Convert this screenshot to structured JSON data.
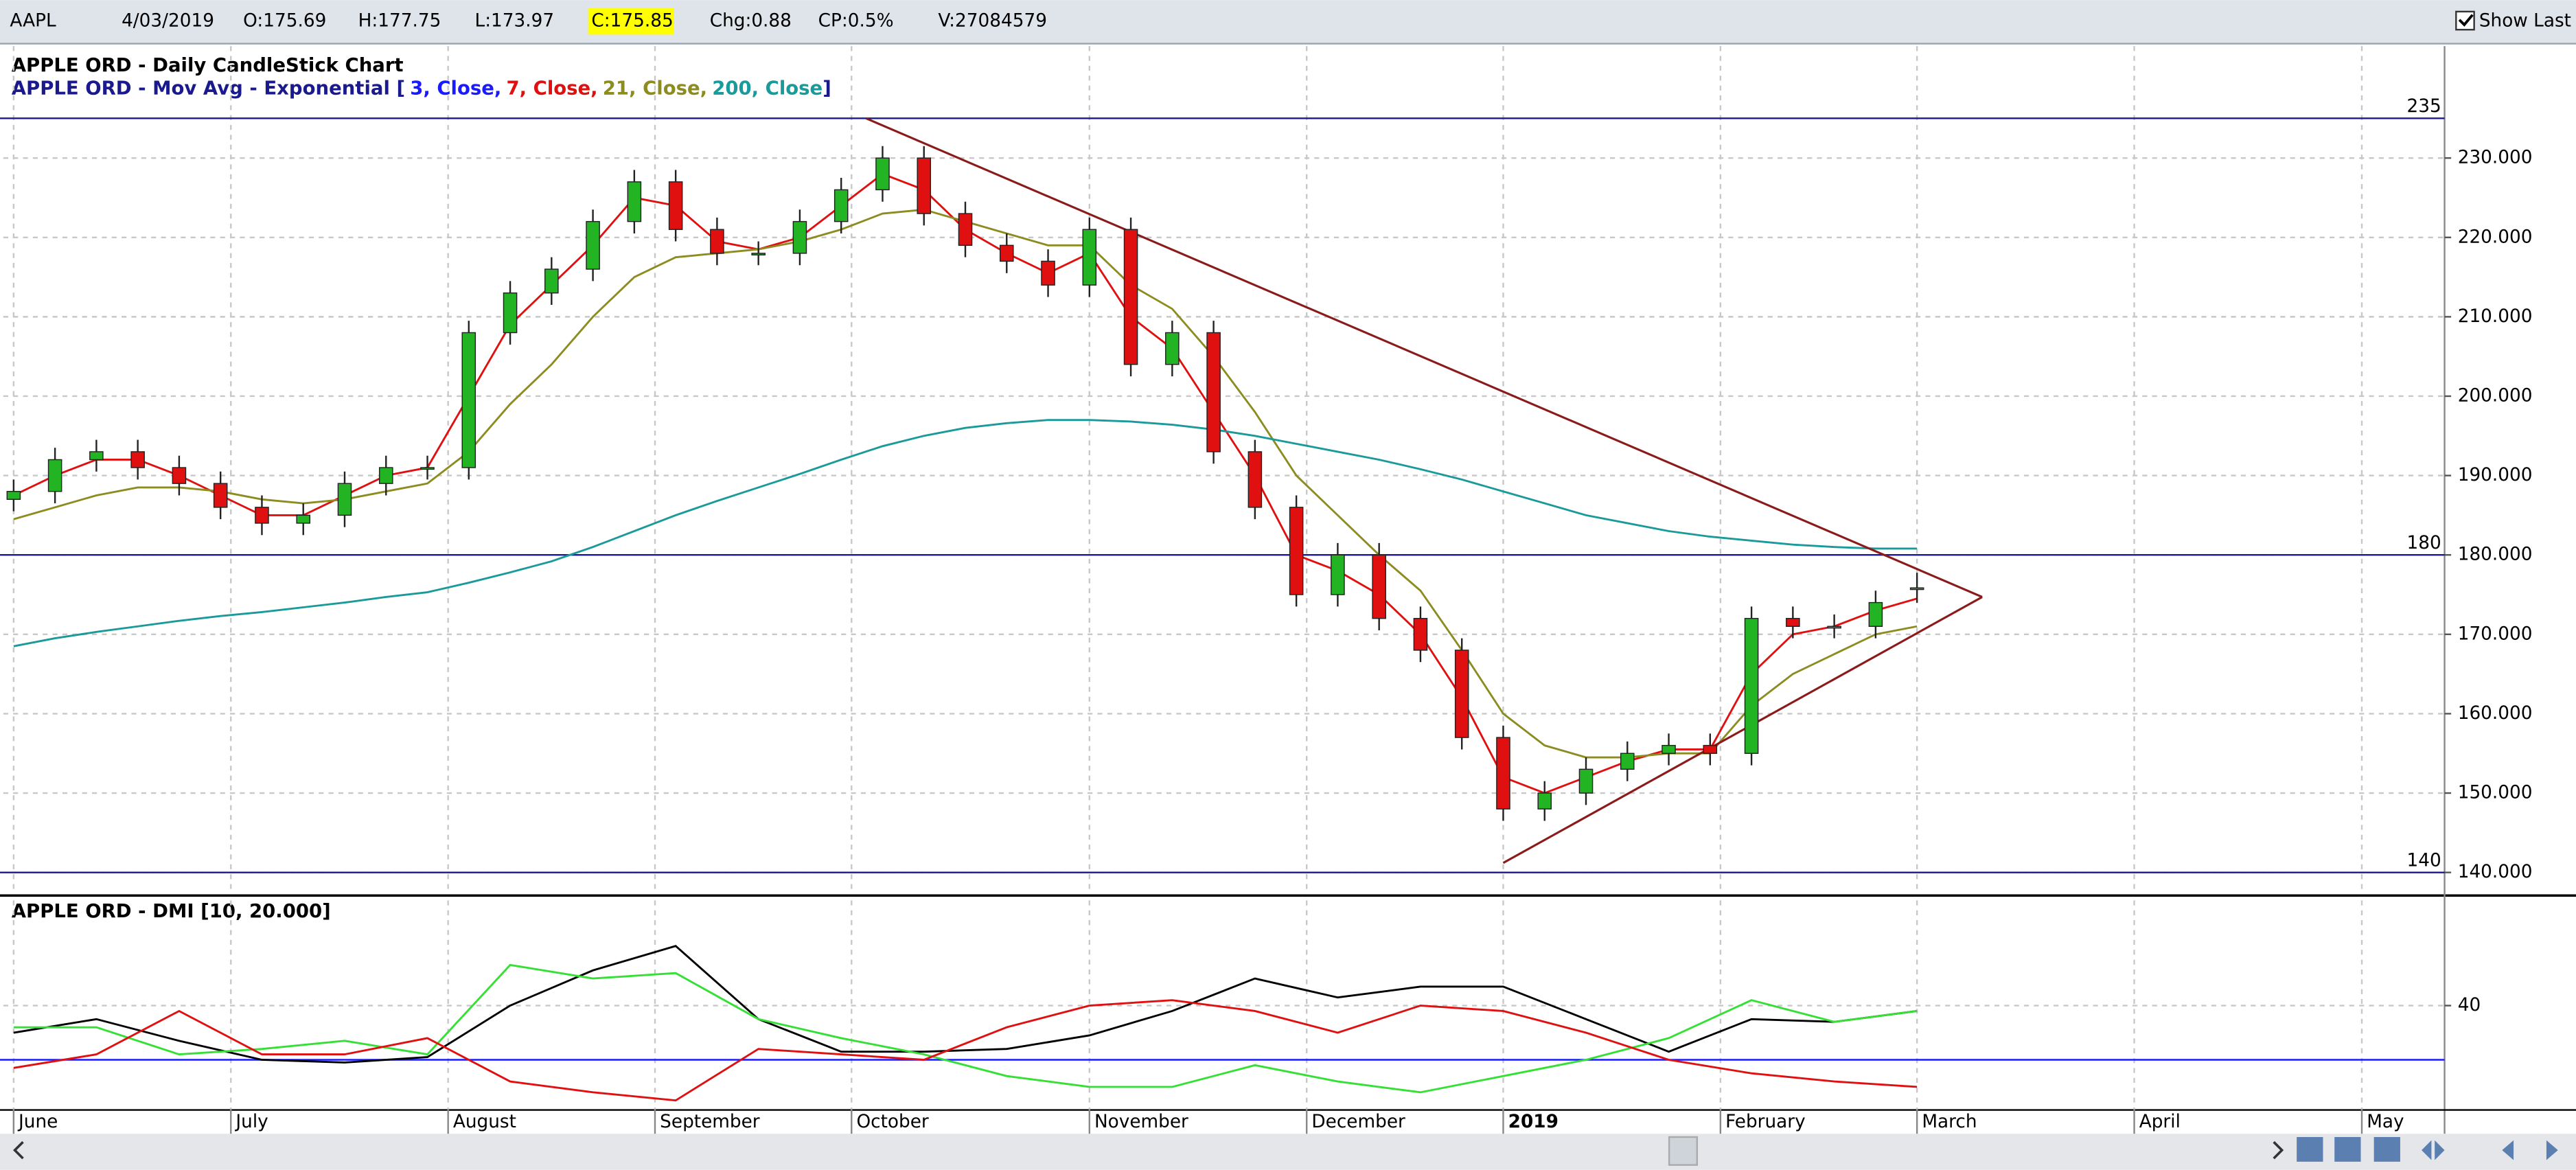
{
  "header": {
    "symbol": "AAPL",
    "date": "4/03/2019",
    "open": "O:175.69",
    "high": "H:177.75",
    "low": "L:173.97",
    "close": "C:175.85",
    "change": "Chg:0.88",
    "change_pct": "CP:0.5%",
    "volume": "V:27084579",
    "show_last": "Show Last"
  },
  "chart_data": [
    {
      "type": "candlestick",
      "title": "APPLE ORD - Daily CandleStick Chart",
      "legend_parts": [
        {
          "text": "APPLE ORD - Mov Avg - Exponential [",
          "color": "#1a1a8c"
        },
        {
          "text": "3, Close,",
          "color": "#1a1aff"
        },
        {
          "text": "7, Close,",
          "color": "#e01010"
        },
        {
          "text": "21, Close,",
          "color": "#8c8c20"
        },
        {
          "text": "200, Close",
          "color": "#1a9a9a"
        },
        {
          "text": "]",
          "color": "#1a1a8c"
        }
      ],
      "x": [
        0,
        4,
        8,
        12,
        16,
        20,
        24,
        28,
        32,
        36,
        40,
        44,
        48,
        52,
        56,
        60,
        64,
        68,
        72,
        76,
        80,
        84,
        88,
        92,
        96,
        100,
        104,
        108,
        112,
        116,
        120,
        124,
        128,
        132,
        136,
        140,
        144,
        148,
        152,
        156,
        160,
        164,
        168,
        172,
        176,
        180,
        184
      ],
      "open": [
        187,
        188,
        192,
        193,
        191,
        189,
        186,
        184,
        185,
        189,
        191,
        191,
        208,
        213,
        216,
        222,
        227,
        221,
        218,
        218,
        222,
        226,
        230,
        223,
        219,
        217,
        214,
        221,
        204,
        208,
        193,
        186,
        175,
        180,
        172,
        168,
        157,
        148,
        150,
        153,
        155,
        156,
        155,
        172,
        171,
        171,
        175.69
      ],
      "high": [
        189.5,
        193.5,
        194.5,
        194.5,
        192.5,
        190.5,
        187.5,
        186.5,
        190.5,
        192.5,
        192.5,
        209.5,
        214.5,
        217.5,
        223.5,
        228.5,
        228.5,
        222.5,
        219.5,
        223.5,
        227.5,
        231.5,
        231.5,
        224.5,
        220.5,
        218.5,
        222.5,
        222.5,
        209.5,
        209.5,
        194.5,
        187.5,
        181.5,
        181.5,
        173.5,
        169.5,
        158.5,
        151.5,
        154.5,
        156.5,
        157.5,
        157.5,
        173.5,
        173.5,
        172.5,
        175.5,
        177.75
      ],
      "low": [
        185.5,
        186.5,
        190.5,
        189.5,
        187.5,
        184.5,
        182.5,
        182.5,
        183.5,
        187.5,
        189.5,
        189.5,
        206.5,
        211.5,
        214.5,
        220.5,
        219.5,
        216.5,
        216.5,
        216.5,
        220.5,
        224.5,
        221.5,
        217.5,
        215.5,
        212.5,
        212.5,
        202.5,
        202.5,
        191.5,
        184.5,
        173.5,
        173.5,
        170.5,
        166.5,
        155.5,
        146.5,
        146.5,
        148.5,
        151.5,
        153.5,
        153.5,
        153.5,
        169.5,
        169.5,
        169.5,
        173.97
      ],
      "close": [
        188,
        192,
        193,
        191,
        189,
        186,
        184,
        185,
        189,
        191,
        191,
        208,
        213,
        216,
        222,
        227,
        221,
        218,
        218,
        222,
        226,
        230,
        223,
        219,
        217,
        214,
        221,
        204,
        208,
        193,
        186,
        175,
        180,
        172,
        168,
        157,
        148,
        150,
        153,
        155,
        156,
        155,
        172,
        171,
        171,
        174,
        175.85
      ],
      "up_color": "#22b422",
      "down_color": "#e01010",
      "series": [
        {
          "color": "#e01010",
          "values": [
            187.5,
            190,
            192,
            192,
            190,
            187.5,
            185,
            185,
            187.5,
            190,
            191,
            200,
            209,
            214,
            219,
            225,
            224,
            219.5,
            218.5,
            220,
            224,
            228,
            226,
            221,
            218,
            215.5,
            218,
            210,
            206,
            198,
            190,
            180,
            178,
            175,
            170,
            162,
            152,
            150,
            152,
            154,
            155.5,
            155.5,
            165,
            170,
            171,
            173,
            174.5
          ]
        },
        {
          "color": "#8c8c20",
          "values": [
            184.5,
            186,
            187.5,
            188.5,
            188.5,
            188,
            187,
            186.5,
            187,
            188,
            189,
            193,
            199,
            204,
            210,
            215,
            217.5,
            218,
            218.5,
            219.5,
            221,
            223,
            223.5,
            222,
            220.5,
            219,
            219,
            214,
            211,
            205,
            198,
            190,
            185,
            180,
            175.5,
            168,
            160,
            156,
            154.5,
            154.5,
            155,
            155,
            161,
            165,
            167.5,
            170,
            171
          ]
        },
        {
          "color": "#1a9a9a",
          "values": [
            168.5,
            169.5,
            170.3,
            171,
            171.7,
            172.3,
            172.8,
            173.4,
            174,
            174.7,
            175.3,
            176.5,
            177.8,
            179.2,
            181,
            183,
            185,
            186.8,
            188.5,
            190.2,
            192,
            193.7,
            195,
            196,
            196.6,
            197,
            197,
            196.8,
            196.4,
            195.8,
            195,
            194,
            193,
            192,
            190.8,
            189.5,
            188,
            186.5,
            185,
            184,
            183,
            182.3,
            181.8,
            181.3,
            181,
            180.8,
            180.8
          ]
        }
      ],
      "hlines": [
        235,
        180,
        140
      ],
      "hline_color": "#1a1a8c",
      "trendlines": [
        {
          "x": [
            82.4,
            190.3
          ],
          "y": [
            235,
            174.7
          ]
        },
        {
          "x": [
            144,
            190.3
          ],
          "y": [
            141.2,
            174.7
          ]
        }
      ],
      "trend_color": "#8b1a1a",
      "xlim": [
        -1,
        235
      ],
      "xticks": [
        {
          "value": 0,
          "label": "June"
        },
        {
          "value": 21,
          "label": "July"
        },
        {
          "value": 42,
          "label": "August"
        },
        {
          "value": 62,
          "label": "September"
        },
        {
          "value": 81,
          "label": "October"
        },
        {
          "value": 104,
          "label": "November"
        },
        {
          "value": 125,
          "label": "December"
        },
        {
          "value": 144,
          "label": "2019"
        },
        {
          "value": 165,
          "label": "February"
        },
        {
          "value": 184,
          "label": "March"
        },
        {
          "value": 205,
          "label": "April"
        },
        {
          "value": 227,
          "label": "May"
        }
      ],
      "ylim": [
        137.3,
        244.1
      ],
      "yticks": [
        {
          "value": 140,
          "label": "140.000"
        },
        {
          "value": 150,
          "label": "150.000"
        },
        {
          "value": 160,
          "label": "160.000"
        },
        {
          "value": 170,
          "label": "170.000"
        },
        {
          "value": 180,
          "label": "180.000"
        },
        {
          "value": 190,
          "label": "190.000"
        },
        {
          "value": 200,
          "label": "200.000"
        },
        {
          "value": 210,
          "label": "210.000"
        },
        {
          "value": 220,
          "label": "220.000"
        },
        {
          "value": 230,
          "label": "230.000"
        }
      ],
      "grid": true
    },
    {
      "type": "line",
      "title": "APPLE ORD - DMI [10, 20.000]",
      "x": [
        0,
        8,
        16,
        24,
        32,
        40,
        48,
        56,
        64,
        72,
        80,
        88,
        96,
        104,
        112,
        120,
        128,
        136,
        144,
        152,
        160,
        168,
        176,
        184
      ],
      "series": [
        {
          "color": "#000000",
          "values": [
            30,
            35,
            27,
            20,
            19,
            21,
            40,
            53,
            62,
            35,
            23,
            23,
            24,
            29,
            38,
            50,
            43,
            47,
            47,
            35,
            23,
            35,
            34,
            38
          ]
        },
        {
          "color": "#33e033",
          "values": [
            32,
            32,
            22,
            24,
            27,
            22,
            55,
            50,
            52,
            35,
            28,
            22,
            14,
            10,
            10,
            18,
            12,
            8,
            14,
            20,
            28,
            42,
            34,
            38
          ]
        },
        {
          "color": "#e01010",
          "values": [
            17,
            22,
            38,
            22,
            22,
            28,
            12,
            8,
            5,
            24,
            22,
            20,
            32,
            40,
            42,
            38,
            30,
            40,
            38,
            30,
            20,
            15,
            12,
            10
          ]
        }
      ],
      "threshold": 20,
      "threshold_color": "#1a1aff",
      "xlim": [
        -1,
        235
      ],
      "ylim": [
        1.8,
        78.8
      ],
      "yticks": [
        40
      ],
      "grid": true
    }
  ]
}
